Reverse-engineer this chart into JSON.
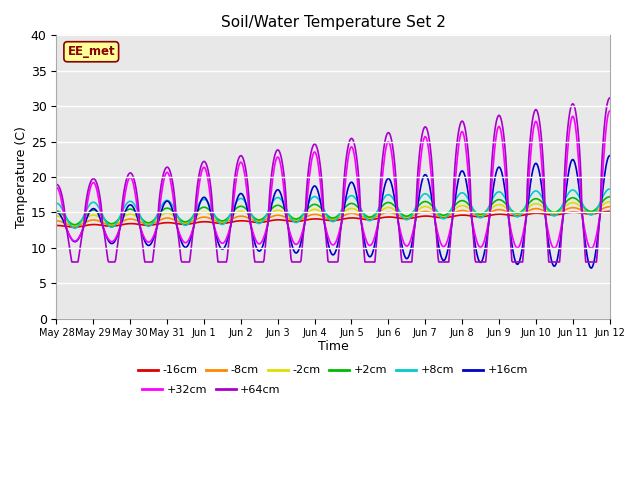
{
  "title": "Soil/Water Temperature Set 2",
  "xlabel": "Time",
  "ylabel": "Temperature (C)",
  "ylim": [
    0,
    40
  ],
  "yticks": [
    0,
    5,
    10,
    15,
    20,
    25,
    30,
    35,
    40
  ],
  "fig_bg_color": "#ffffff",
  "plot_bg_color": "#e8e8e8",
  "annotation_label": "EE_met",
  "annotation_bg": "#ffff99",
  "annotation_border": "#8b0000",
  "grid_color": "#ffffff",
  "series": {
    "-16cm": {
      "color": "#dd0000",
      "lw": 1.2
    },
    "-8cm": {
      "color": "#ff8800",
      "lw": 1.2
    },
    "-2cm": {
      "color": "#dddd00",
      "lw": 1.2
    },
    "+2cm": {
      "color": "#00bb00",
      "lw": 1.2
    },
    "+8cm": {
      "color": "#00cccc",
      "lw": 1.2
    },
    "+16cm": {
      "color": "#0000cc",
      "lw": 1.2
    },
    "+32cm": {
      "color": "#ff00ff",
      "lw": 1.2
    },
    "+64cm": {
      "color": "#aa00cc",
      "lw": 1.2
    }
  },
  "tick_labels": [
    "May 28",
    "May 29",
    "May 30",
    "May 31",
    "Jun 1",
    "Jun 2",
    "Jun 3",
    "Jun 4",
    "Jun 5",
    "Jun 6",
    "Jun 7",
    "Jun 8",
    "Jun 9",
    "Jun 10",
    "Jun 11",
    "Jun 12"
  ],
  "legend_order": [
    "-16cm",
    "-8cm",
    "-2cm",
    "+2cm",
    "+8cm",
    "+16cm",
    "+32cm",
    "+64cm"
  ]
}
